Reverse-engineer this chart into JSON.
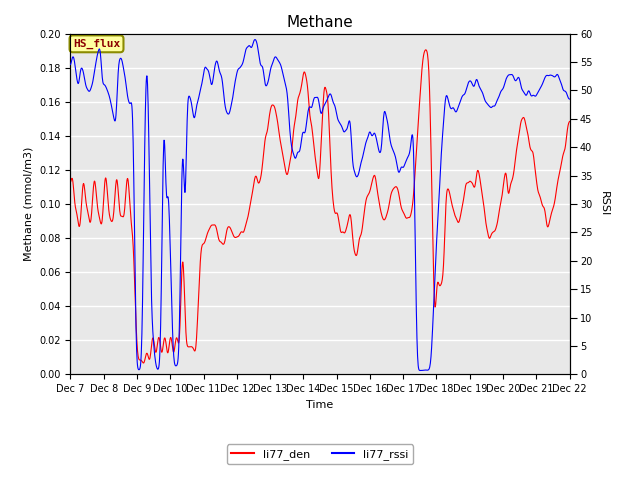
{
  "title": "Methane",
  "xlabel": "Time",
  "ylabel_left": "Methane (mmol/m3)",
  "ylabel_right": "RSSI",
  "ylim_left": [
    0.0,
    0.2
  ],
  "ylim_right": [
    0,
    60
  ],
  "yticks_left": [
    0.0,
    0.02,
    0.04,
    0.06,
    0.08,
    0.1,
    0.12,
    0.14,
    0.16,
    0.18,
    0.2
  ],
  "yticks_right": [
    0,
    5,
    10,
    15,
    20,
    25,
    30,
    35,
    40,
    45,
    50,
    55,
    60
  ],
  "xtick_labels": [
    "Dec 7",
    "Dec 8",
    "Dec 9",
    "Dec 10",
    "Dec 11",
    "Dec 12",
    "Dec 13",
    "Dec 14",
    "Dec 15",
    "Dec 16",
    "Dec 17",
    "Dec 18",
    "Dec 19",
    "Dec 20",
    "Dec 21",
    "Dec 22"
  ],
  "legend_labels": [
    "li77_den",
    "li77_rssi"
  ],
  "line_color_den": "red",
  "line_color_rssi": "blue",
  "annotation_text": "HS_flux",
  "annotation_color": "#8B0000",
  "annotation_bg": "#FFFFA0",
  "annotation_border": "#8B8B00",
  "plot_bg_color": "#E8E8E8",
  "fig_bg_color": "#FFFFFF",
  "grid_color": "#FFFFFF",
  "title_fontsize": 11,
  "axis_label_fontsize": 8,
  "tick_fontsize": 7,
  "legend_fontsize": 8
}
